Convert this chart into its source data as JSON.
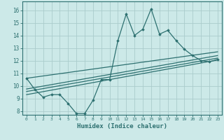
{
  "xlabel": "Humidex (Indice chaleur)",
  "xlim": [
    -0.5,
    23.5
  ],
  "ylim": [
    7.7,
    16.7
  ],
  "yticks": [
    8,
    9,
    10,
    11,
    12,
    13,
    14,
    15,
    16
  ],
  "xticks": [
    0,
    1,
    2,
    3,
    4,
    5,
    6,
    7,
    8,
    9,
    10,
    11,
    12,
    13,
    14,
    15,
    16,
    17,
    18,
    19,
    20,
    21,
    22,
    23
  ],
  "background_color": "#cce9e8",
  "grid_color": "#aacccc",
  "line_color": "#2d7070",
  "line1_x": [
    0,
    1,
    2,
    3,
    4,
    5,
    6,
    7,
    8,
    9,
    10,
    11,
    12,
    13,
    14,
    15,
    16,
    17,
    18,
    19,
    20,
    21,
    22,
    23
  ],
  "line1_y": [
    10.6,
    9.7,
    9.1,
    9.3,
    9.3,
    8.6,
    7.8,
    7.8,
    8.85,
    10.5,
    10.5,
    13.6,
    15.7,
    14.0,
    14.5,
    16.1,
    14.1,
    14.4,
    13.6,
    12.9,
    12.4,
    12.0,
    11.9,
    12.1
  ],
  "line2_x": [
    0,
    23
  ],
  "line2_y": [
    9.3,
    12.05
  ],
  "line3_x": [
    0,
    23
  ],
  "line3_y": [
    9.55,
    12.2
  ],
  "line4_x": [
    0,
    23
  ],
  "line4_y": [
    9.75,
    12.4
  ],
  "line5_x": [
    0,
    23
  ],
  "line5_y": [
    10.6,
    12.7
  ]
}
